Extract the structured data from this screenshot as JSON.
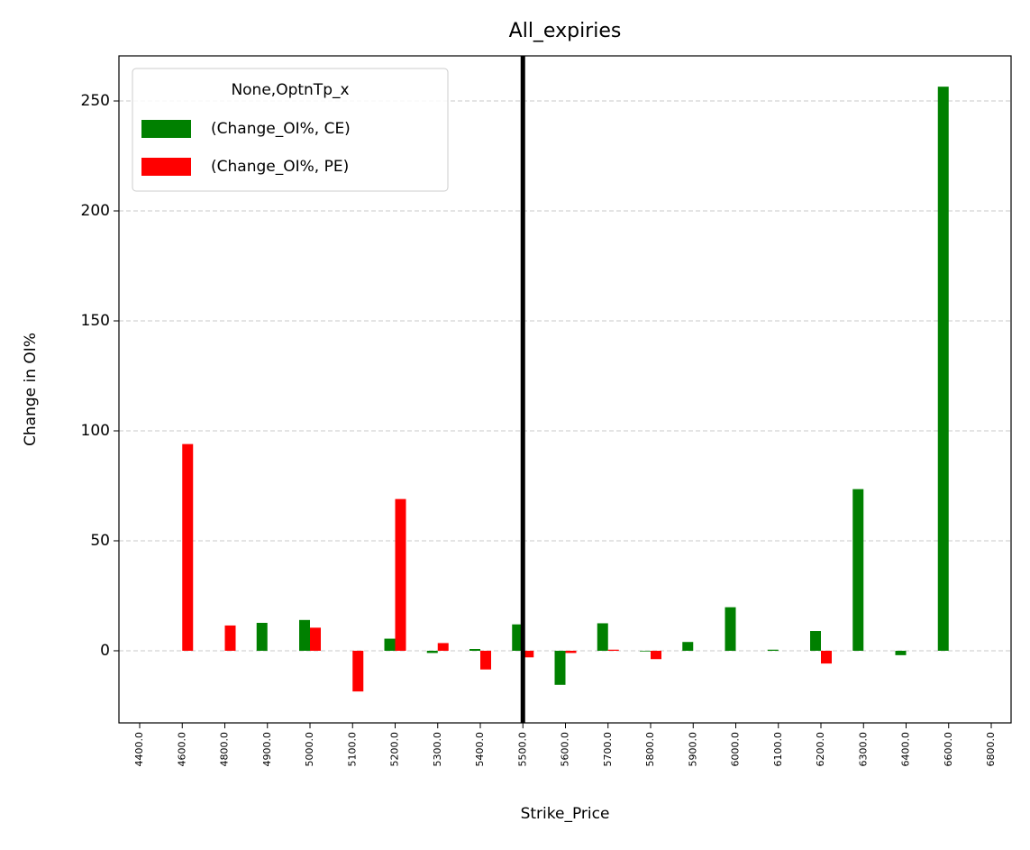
{
  "chart_data": {
    "type": "bar",
    "title": "All_expiries",
    "x_label": "Strike_Price",
    "y_label": "Change in OI%",
    "categories": [
      "4400.0",
      "4600.0",
      "4800.0",
      "4900.0",
      "5000.0",
      "5100.0",
      "5200.0",
      "5300.0",
      "5400.0",
      "5500.0",
      "5600.0",
      "5700.0",
      "5800.0",
      "5900.0",
      "6000.0",
      "6100.0",
      "6200.0",
      "6300.0",
      "6400.0",
      "6600.0",
      "6800.0"
    ],
    "series": [
      {
        "name": "(Change_OI%, CE)",
        "color": "#008000",
        "values": [
          0,
          0,
          0,
          12.7,
          14,
          0,
          5.5,
          -1,
          0.8,
          12,
          -15.5,
          12.5,
          -0.3,
          4,
          19.8,
          0.5,
          9,
          73.5,
          -2,
          256.5,
          0
        ]
      },
      {
        "name": "(Change_OI%, PE)",
        "color": "#ff0000",
        "values": [
          0,
          94,
          11.5,
          0,
          10.5,
          -18.5,
          69,
          3.5,
          -8.5,
          -3,
          -1,
          0.5,
          -3.8,
          0,
          0,
          0,
          -5.8,
          0,
          0,
          0,
          0
        ]
      }
    ],
    "legend_title": "None,OptnTp_x",
    "legend_position": "upper left",
    "vline_category": "5500.0",
    "vline_color": "#000000",
    "ylim": [
      -32.8,
      270.5
    ],
    "yticks": [
      0,
      50,
      100,
      150,
      200,
      250
    ],
    "grid": true
  }
}
